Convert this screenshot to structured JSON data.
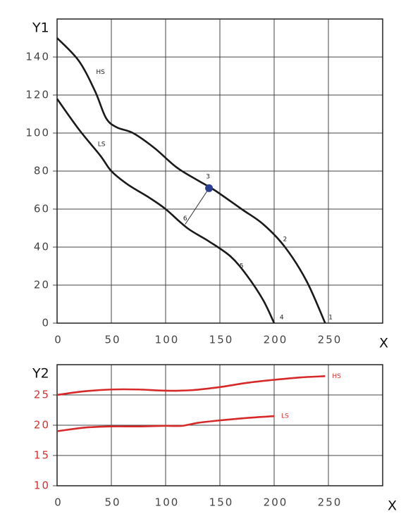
{
  "chart_data": [
    {
      "type": "line",
      "ylabel": "Y1",
      "xlabel": "X",
      "xlim": [
        0,
        300
      ],
      "xticks": [
        0,
        50,
        100,
        150,
        200,
        250
      ],
      "ylim": [
        0,
        160
      ],
      "yticks": [
        0,
        20,
        40,
        60,
        80,
        100,
        120,
        140
      ],
      "grid": true,
      "tick_color": "#444",
      "series": [
        {
          "name": "HS",
          "color": "#1a1a1a",
          "x": [
            0,
            20,
            35,
            45,
            55,
            70,
            90,
            110,
            130,
            145,
            170,
            190,
            210,
            230,
            247
          ],
          "values": [
            150,
            138,
            122,
            108,
            103,
            100,
            92,
            82,
            75,
            70,
            60,
            52,
            40,
            22,
            0
          ]
        },
        {
          "name": "LS",
          "color": "#1a1a1a",
          "x": [
            0,
            20,
            40,
            50,
            65,
            85,
            100,
            120,
            140,
            160,
            175,
            190,
            200
          ],
          "values": [
            118,
            102,
            88,
            80,
            73,
            66,
            60,
            50,
            43,
            35,
            25,
            12,
            0
          ]
        }
      ],
      "connector": {
        "x": [
          140,
          118
        ],
        "values": [
          71,
          52
        ],
        "color": "#333"
      },
      "marker": {
        "x": 140,
        "value": 71,
        "color": "#2b3f91"
      },
      "annotations": [
        {
          "text": "HS",
          "x": 40,
          "y": 132
        },
        {
          "text": "LS",
          "x": 41,
          "y": 94
        },
        {
          "text": "3",
          "x": 139,
          "y": 77
        },
        {
          "text": "2",
          "x": 210,
          "y": 44
        },
        {
          "text": "1",
          "x": 252,
          "y": 3
        },
        {
          "text": "4",
          "x": 207,
          "y": 3
        },
        {
          "text": "5",
          "x": 170,
          "y": 30
        },
        {
          "text": "6",
          "x": 118,
          "y": 55
        }
      ]
    },
    {
      "type": "line",
      "ylabel": "Y2",
      "xlabel": "X",
      "xlim": [
        0,
        300
      ],
      "xticks": [
        0,
        50,
        100,
        150,
        200,
        250
      ],
      "ylim": [
        10,
        30
      ],
      "yticks": [
        10,
        15,
        20,
        25
      ],
      "grid": true,
      "tick_color": "#d43030",
      "series": [
        {
          "name": "HS",
          "color": "#d62a2a",
          "x": [
            0,
            25,
            50,
            75,
            100,
            125,
            150,
            175,
            200,
            225,
            247
          ],
          "values": [
            25,
            25.6,
            25.9,
            25.9,
            25.7,
            25.8,
            26.3,
            27,
            27.5,
            27.9,
            28.1
          ]
        },
        {
          "name": "LS",
          "color": "#d62a2a",
          "x": [
            0,
            25,
            50,
            75,
            100,
            115,
            130,
            150,
            175,
            200
          ],
          "values": [
            19,
            19.6,
            19.8,
            19.8,
            19.9,
            19.9,
            20.4,
            20.8,
            21.2,
            21.5
          ]
        }
      ]
    }
  ]
}
